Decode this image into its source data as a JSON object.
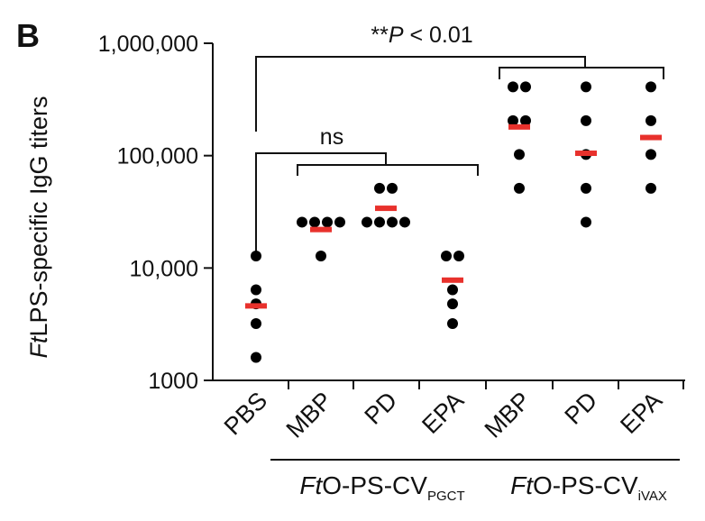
{
  "panel_label": "B",
  "chart_data": {
    "type": "scatter",
    "scale": "log",
    "ylim": [
      1000,
      1000000
    ],
    "yticks": [
      1000,
      10000,
      100000,
      1000000
    ],
    "ytick_labels": [
      "1000",
      "10,000",
      "100,000",
      "1,000,000"
    ],
    "ylabel_italic": "Ft",
    "ylabel_rest": "LPS-specific IgG titers",
    "categories": [
      "PBS",
      "MBP",
      "PD",
      "EPA",
      "MBP",
      "PD",
      "EPA"
    ],
    "groups": [
      {
        "prefix_italic": "Ft",
        "main": "O-PS-CV",
        "sub": "PGCT",
        "categories": [
          1,
          2,
          3
        ]
      },
      {
        "prefix_italic": "Ft",
        "main": "O-PS-CV",
        "sub": "iVAX",
        "categories": [
          4,
          5,
          6
        ]
      }
    ],
    "points": [
      [
        12800,
        6400,
        4800,
        3200,
        1600
      ],
      [
        25600,
        25600,
        25600,
        25600,
        12800
      ],
      [
        51200,
        51200,
        25600,
        25600,
        25600,
        25600
      ],
      [
        12800,
        12800,
        6400,
        4800,
        3200
      ],
      [
        409600,
        409600,
        204800,
        204800,
        102400,
        51200
      ],
      [
        409600,
        204800,
        102400,
        51200,
        25600
      ],
      [
        409600,
        204800,
        102400,
        51200
      ]
    ],
    "means": [
      4600,
      22000,
      34000,
      7800,
      180000,
      105000,
      145000
    ],
    "annotations": {
      "ns_label": "ns",
      "sig_prefix": "**",
      "sig_italic": "P",
      "sig_suffix": " < 0.01"
    },
    "colors": {
      "point": "#000000",
      "mean": "#e8312c",
      "axis": "#111111"
    }
  }
}
